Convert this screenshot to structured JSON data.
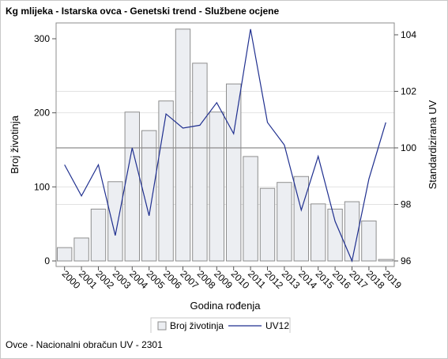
{
  "title": "Kg mlijeka - Istarska ovca - Genetski trend - Službene ocjene",
  "footnote": "Ovce - Nacionalni obračun UV - 2301",
  "chart_data": {
    "type": "bar+line",
    "title": "Kg mlijeka - Istarska ovca - Genetski trend - Službene ocjene",
    "xlabel": "Godina rođenja",
    "ylabel_left": "Broj životinja",
    "ylabel_right": "Standardizirana UV",
    "categories": [
      "2000",
      "2001",
      "2002",
      "2003",
      "2004",
      "2005",
      "2006",
      "2007",
      "2008",
      "2009",
      "2010",
      "2011",
      "2012",
      "2013",
      "2014",
      "2015",
      "2016",
      "2017",
      "2018",
      "2019"
    ],
    "y_left": {
      "min": 0,
      "max": 300,
      "ticks": [
        0,
        100,
        200,
        300
      ]
    },
    "y_right": {
      "min": 96,
      "max": 104,
      "ticks": [
        96,
        98,
        100,
        102,
        104
      ]
    },
    "reference_line_right": 100,
    "grid": "horizontal",
    "legend_position": "bottom",
    "series": [
      {
        "name": "Broj životinja",
        "type": "bar",
        "axis": "left",
        "color": "#eceef2",
        "stroke": "#8e8e8e",
        "values": [
          18,
          31,
          70,
          107,
          201,
          176,
          216,
          313,
          267,
          201,
          239,
          141,
          98,
          106,
          114,
          77,
          70,
          80,
          54,
          2
        ]
      },
      {
        "name": "UV12",
        "type": "line",
        "axis": "right",
        "color": "#1f2f8f",
        "values": [
          99.4,
          98.3,
          99.4,
          96.9,
          100.0,
          97.6,
          101.2,
          100.7,
          100.8,
          101.6,
          100.5,
          104.2,
          100.9,
          100.1,
          97.8,
          99.7,
          97.4,
          96.0,
          98.9,
          100.9
        ]
      }
    ]
  }
}
